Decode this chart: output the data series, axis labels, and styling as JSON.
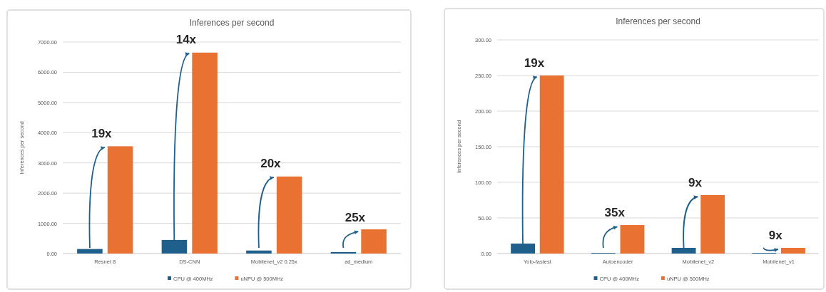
{
  "chart_data": [
    {
      "type": "bar",
      "title": "Inferences per second",
      "ylabel": "Inferences per second",
      "categories": [
        "Resnet 8",
        "DS-CNN",
        "Mobilenet_v2 0.25x",
        "ad_medium"
      ],
      "series": [
        {
          "name": "CPU @ 400MHz",
          "color": "#1f5f8b",
          "values": [
            150,
            450,
            100,
            50
          ]
        },
        {
          "name": "uNPU @ 500MHz",
          "color": "#e97132",
          "values": [
            3550,
            6650,
            2550,
            800
          ]
        }
      ],
      "ylim": [
        0,
        7000
      ],
      "yticks": [
        {
          "value": 0,
          "label": "0.00"
        },
        {
          "value": 1000,
          "label": "1000.00"
        },
        {
          "value": 2000,
          "label": "2000.00"
        },
        {
          "value": 3000,
          "label": "3000.00"
        },
        {
          "value": 4000,
          "label": "4000.00"
        },
        {
          "value": 5000,
          "label": "5000.00"
        },
        {
          "value": 6000,
          "label": "6000.00"
        },
        {
          "value": 7000,
          "label": "7000.00"
        }
      ],
      "grid": "y",
      "legend": "bottom",
      "annotations": [
        {
          "text": "19x",
          "x": "Resnet 8",
          "y": 3560
        },
        {
          "text": "14x",
          "x": "DS-CNN",
          "y": 6670
        },
        {
          "text": "20x",
          "x": "Mobilenet_v2 0.25x",
          "y": 2570
        },
        {
          "text": "25x",
          "x": "ad_medium",
          "y": 775
        }
      ]
    },
    {
      "type": "bar",
      "title": "Inferences per second",
      "ylabel": "Inferences per second",
      "categories": [
        "Yolo-fastest",
        "Autoencoder",
        "Mobilenet_v2",
        "Mobilenet_v1"
      ],
      "series": [
        {
          "name": "CPU @ 400MHz",
          "color": "#1f5f8b",
          "values": [
            14,
            1,
            8,
            1
          ]
        },
        {
          "name": "uNPU @ 500MHz",
          "color": "#e97132",
          "values": [
            250,
            40,
            82,
            8
          ]
        }
      ],
      "ylim": [
        0,
        300
      ],
      "yticks": [
        {
          "value": 0,
          "label": "0.00"
        },
        {
          "value": 50,
          "label": "50.00"
        },
        {
          "value": 100,
          "label": "100.00"
        },
        {
          "value": 150,
          "label": "150.00"
        },
        {
          "value": 200,
          "label": "200.00"
        },
        {
          "value": 250,
          "label": "250.00"
        },
        {
          "value": 300,
          "label": "300.00"
        }
      ],
      "grid": "y",
      "legend": "bottom",
      "annotations": [
        {
          "text": "19x",
          "x": "Yolo-fastest",
          "y": 250
        },
        {
          "text": "35x",
          "x": "Autoencoder",
          "y": 39.6
        },
        {
          "text": "9x",
          "x": "Mobilenet_v2",
          "y": 82
        },
        {
          "text": "9x",
          "x": "Mobilenet_v1",
          "y": 8
        }
      ]
    }
  ]
}
